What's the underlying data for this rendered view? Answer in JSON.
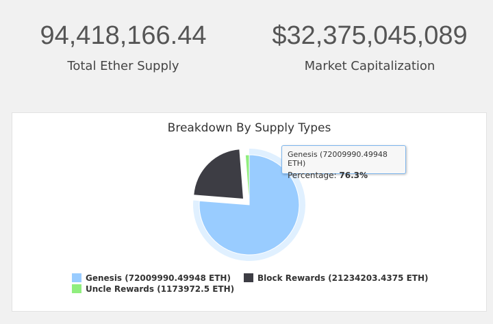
{
  "stats": {
    "supply": {
      "value": "94,418,166.44",
      "label": "Total Ether Supply"
    },
    "market_cap": {
      "value": "$32,375,045,089",
      "label": "Market Capitalization"
    }
  },
  "chart_data": {
    "type": "pie",
    "title": "Breakdown By Supply Types",
    "series": [
      {
        "name": "Genesis",
        "legend": "Genesis (72009990.49948 ETH)",
        "value": 72009990.49948,
        "color": "#99ccff",
        "sliced": false,
        "hover": true
      },
      {
        "name": "Block Rewards",
        "legend": "Block Rewards (21234203.4375 ETH)",
        "value": 21234203.4375,
        "color": "#3d3d44",
        "sliced": true
      },
      {
        "name": "Uncle Rewards",
        "legend": "Uncle Rewards (1173972.5 ETH)",
        "value": 1173972.5,
        "color": "#90ee7e",
        "sliced": false
      }
    ],
    "legend_position": "bottom",
    "tooltip": {
      "header": "Genesis (72009990.49948 ETH)",
      "label": "Percentage:",
      "value": "76.3%"
    }
  }
}
